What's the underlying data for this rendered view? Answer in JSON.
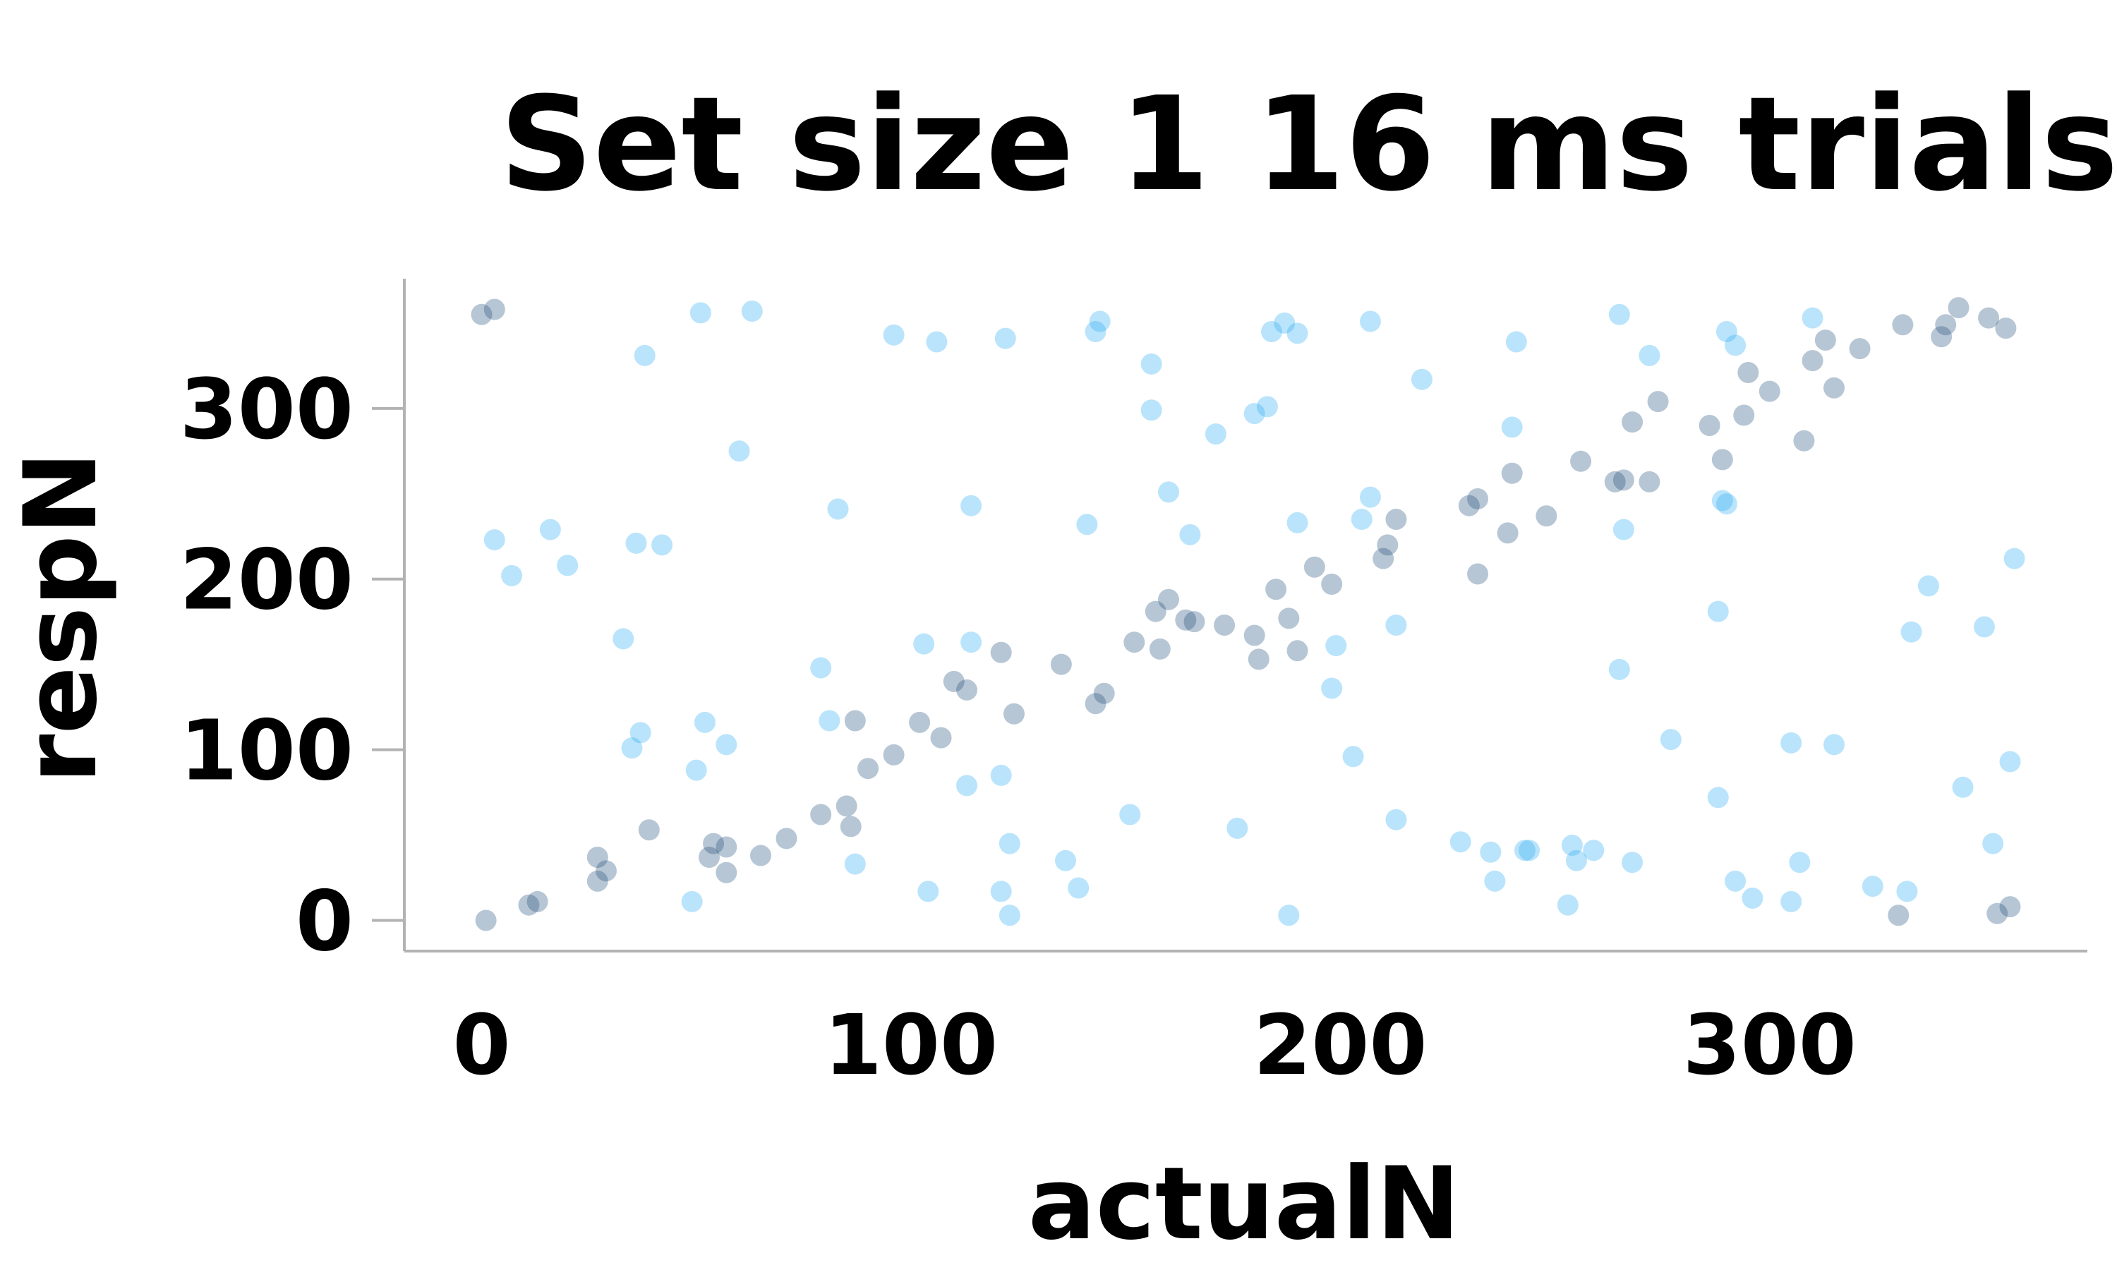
{
  "chart_data": {
    "type": "scatter",
    "title": "Set size 1 16 ms trials",
    "xlabel": "actualN",
    "ylabel": "respN",
    "xlim": [
      -18,
      374
    ],
    "ylim": [
      -18,
      376
    ],
    "xticks": [
      0,
      100,
      200,
      300
    ],
    "yticks": [
      0,
      100,
      200,
      300
    ],
    "grid": false,
    "legend": "none",
    "series": [
      {
        "color": "#1f4e79",
        "points": [
          [
            1,
            0
          ],
          [
            0,
            355
          ],
          [
            3,
            358
          ],
          [
            11,
            9
          ],
          [
            13,
            11
          ],
          [
            27,
            37
          ],
          [
            27,
            23
          ],
          [
            29,
            29
          ],
          [
            39,
            53
          ],
          [
            53,
            37
          ],
          [
            54,
            45
          ],
          [
            57,
            28
          ],
          [
            57,
            43
          ],
          [
            65,
            38
          ],
          [
            71,
            48
          ],
          [
            79,
            62
          ],
          [
            85,
            67
          ],
          [
            86,
            55
          ],
          [
            87,
            117
          ],
          [
            90,
            89
          ],
          [
            96,
            97
          ],
          [
            102,
            116
          ],
          [
            107,
            107
          ],
          [
            110,
            140
          ],
          [
            113,
            135
          ],
          [
            121,
            157
          ],
          [
            124,
            121
          ],
          [
            135,
            150
          ],
          [
            143,
            127
          ],
          [
            145,
            133
          ],
          [
            152,
            163
          ],
          [
            157,
            181
          ],
          [
            158,
            159
          ],
          [
            160,
            188
          ],
          [
            164,
            176
          ],
          [
            166,
            175
          ],
          [
            173,
            173
          ],
          [
            180,
            167
          ],
          [
            181,
            153
          ],
          [
            185,
            194
          ],
          [
            188,
            177
          ],
          [
            190,
            158
          ],
          [
            194,
            207
          ],
          [
            198,
            197
          ],
          [
            210,
            212
          ],
          [
            211,
            220
          ],
          [
            213,
            235
          ],
          [
            230,
            243
          ],
          [
            232,
            247
          ],
          [
            232,
            203
          ],
          [
            239,
            227
          ],
          [
            240,
            262
          ],
          [
            248,
            237
          ],
          [
            256,
            269
          ],
          [
            264,
            257
          ],
          [
            266,
            258
          ],
          [
            268,
            292
          ],
          [
            272,
            257
          ],
          [
            274,
            304
          ],
          [
            286,
            290
          ],
          [
            289,
            270
          ],
          [
            294,
            296
          ],
          [
            295,
            321
          ],
          [
            300,
            310
          ],
          [
            308,
            281
          ],
          [
            310,
            328
          ],
          [
            313,
            340
          ],
          [
            315,
            312
          ],
          [
            321,
            335
          ],
          [
            331,
            349
          ],
          [
            330,
            3
          ],
          [
            340,
            342
          ],
          [
            341,
            349
          ],
          [
            344,
            359
          ],
          [
            351,
            353
          ],
          [
            353,
            4
          ],
          [
            355,
            347
          ],
          [
            356,
            8
          ]
        ]
      },
      {
        "color": "#29aaf2",
        "points": [
          [
            3,
            223
          ],
          [
            7,
            202
          ],
          [
            16,
            229
          ],
          [
            20,
            208
          ],
          [
            33,
            165
          ],
          [
            35,
            101
          ],
          [
            36,
            221
          ],
          [
            37,
            110
          ],
          [
            38,
            331
          ],
          [
            42,
            220
          ],
          [
            49,
            11
          ],
          [
            50,
            88
          ],
          [
            51,
            356
          ],
          [
            52,
            116
          ],
          [
            57,
            103
          ],
          [
            60,
            275
          ],
          [
            63,
            357
          ],
          [
            79,
            148
          ],
          [
            81,
            117
          ],
          [
            83,
            241
          ],
          [
            87,
            33
          ],
          [
            96,
            343
          ],
          [
            103,
            162
          ],
          [
            104,
            17
          ],
          [
            106,
            339
          ],
          [
            113,
            79
          ],
          [
            114,
            243
          ],
          [
            114,
            163
          ],
          [
            121,
            85
          ],
          [
            121,
            17
          ],
          [
            122,
            341
          ],
          [
            123,
            45
          ],
          [
            123,
            3
          ],
          [
            136,
            35
          ],
          [
            139,
            19
          ],
          [
            141,
            232
          ],
          [
            143,
            345
          ],
          [
            144,
            351
          ],
          [
            151,
            62
          ],
          [
            156,
            299
          ],
          [
            156,
            326
          ],
          [
            160,
            251
          ],
          [
            165,
            226
          ],
          [
            171,
            285
          ],
          [
            176,
            54
          ],
          [
            180,
            297
          ],
          [
            183,
            301
          ],
          [
            184,
            345
          ],
          [
            187,
            350
          ],
          [
            188,
            3
          ],
          [
            190,
            344
          ],
          [
            190,
            233
          ],
          [
            198,
            136
          ],
          [
            199,
            161
          ],
          [
            203,
            96
          ],
          [
            205,
            235
          ],
          [
            207,
            248
          ],
          [
            207,
            351
          ],
          [
            213,
            59
          ],
          [
            213,
            173
          ],
          [
            219,
            317
          ],
          [
            228,
            46
          ],
          [
            235,
            40
          ],
          [
            236,
            23
          ],
          [
            240,
            289
          ],
          [
            241,
            339
          ],
          [
            243,
            41
          ],
          [
            244,
            41
          ],
          [
            253,
            9
          ],
          [
            254,
            44
          ],
          [
            255,
            35
          ],
          [
            259,
            41
          ],
          [
            265,
            147
          ],
          [
            265,
            355
          ],
          [
            266,
            229
          ],
          [
            268,
            34
          ],
          [
            272,
            331
          ],
          [
            277,
            106
          ],
          [
            288,
            72
          ],
          [
            288,
            181
          ],
          [
            289,
            246
          ],
          [
            290,
            244
          ],
          [
            290,
            345
          ],
          [
            292,
            337
          ],
          [
            292,
            23
          ],
          [
            296,
            13
          ],
          [
            305,
            11
          ],
          [
            305,
            104
          ],
          [
            307,
            34
          ],
          [
            310,
            353
          ],
          [
            315,
            103
          ],
          [
            324,
            20
          ],
          [
            332,
            17
          ],
          [
            333,
            169
          ],
          [
            337,
            196
          ],
          [
            345,
            78
          ],
          [
            350,
            172
          ],
          [
            352,
            45
          ],
          [
            356,
            93
          ],
          [
            357,
            212
          ]
        ]
      }
    ]
  }
}
